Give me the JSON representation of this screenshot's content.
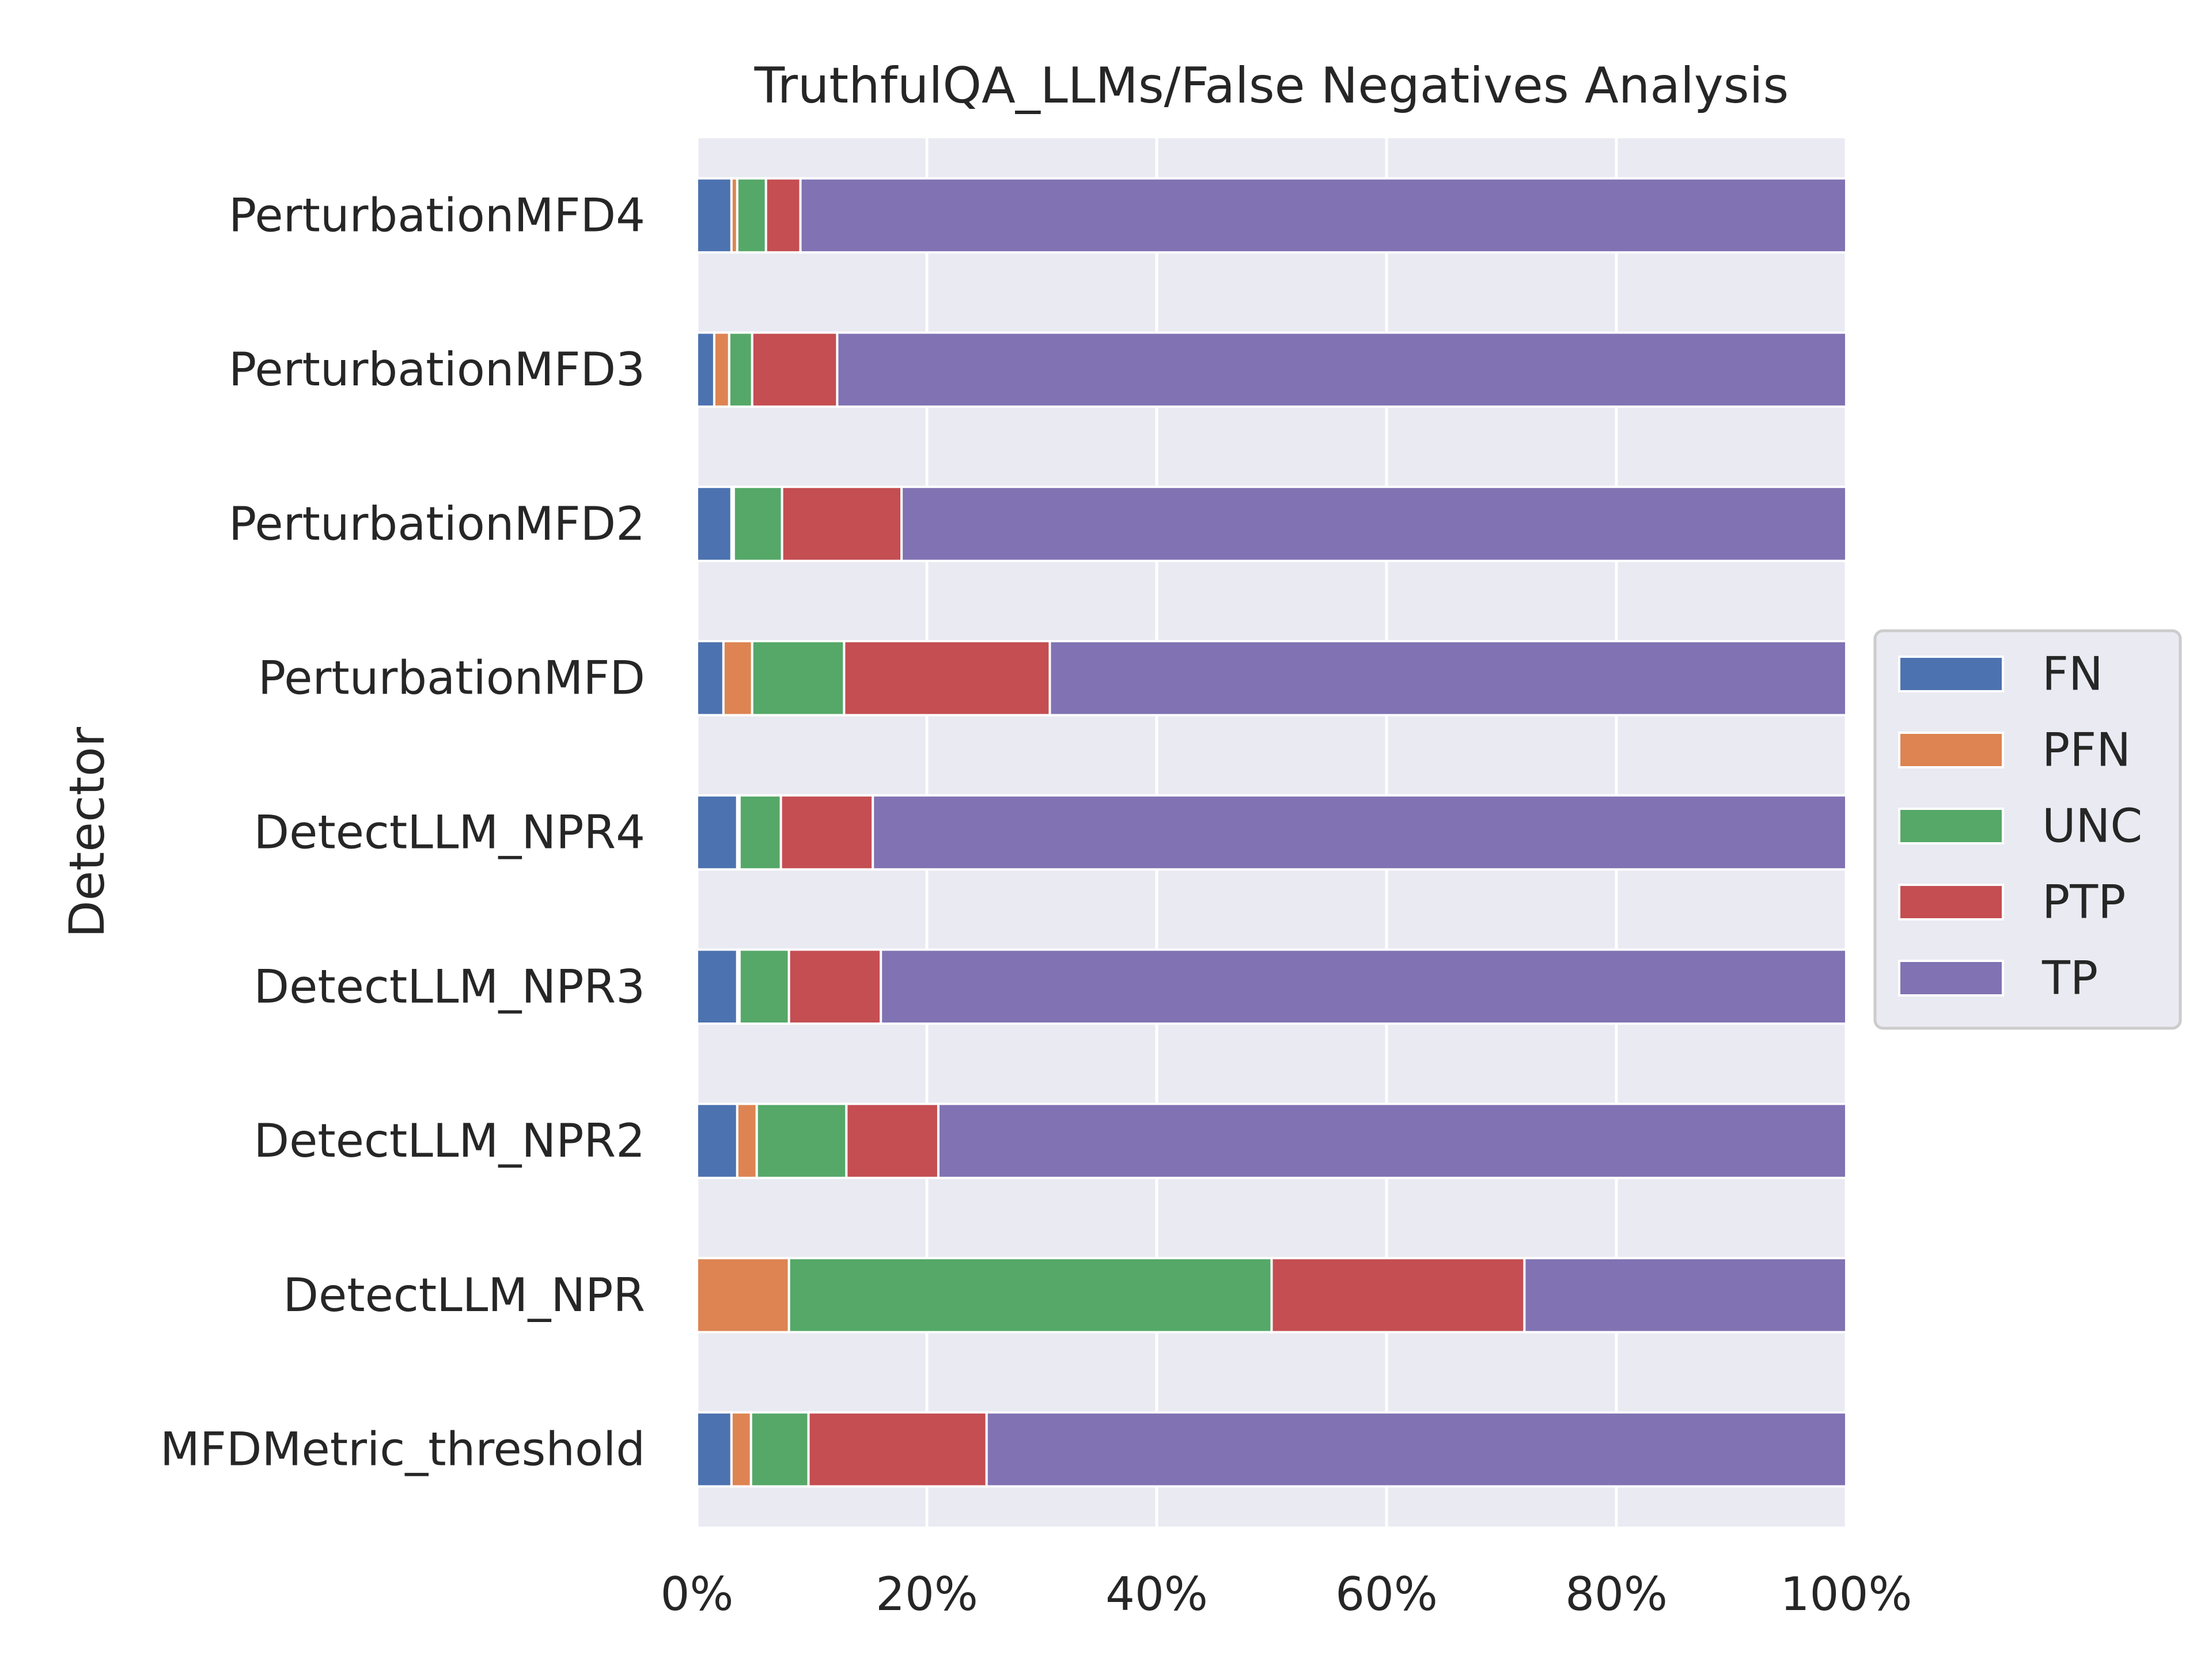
{
  "chart_data": {
    "type": "bar",
    "orientation": "horizontal",
    "stacked": true,
    "title": "TruthfulQA_LLMs/False Negatives Analysis",
    "xlabel": "",
    "ylabel": "Detector",
    "xlim": [
      0,
      100
    ],
    "x_ticks": [
      "0%",
      "20%",
      "40%",
      "60%",
      "80%",
      "100%"
    ],
    "grid": true,
    "legend_position": "center-right",
    "categories": [
      "PerturbationMFD4",
      "PerturbationMFD3",
      "PerturbationMFD2",
      "PerturbationMFD",
      "DetectLLM_NPR4",
      "DetectLLM_NPR3",
      "DetectLLM_NPR2",
      "DetectLLM_NPR",
      "MFDMetric_threshold"
    ],
    "series": [
      {
        "name": "FN",
        "color": "#4c72b0",
        "values": [
          3.0,
          1.5,
          3.0,
          2.3,
          3.5,
          3.5,
          3.5,
          0.0,
          3.0
        ]
      },
      {
        "name": "PFN",
        "color": "#dd8452",
        "values": [
          0.5,
          1.3,
          0.2,
          2.5,
          0.2,
          0.2,
          1.7,
          8.0,
          1.7
        ]
      },
      {
        "name": "UNC",
        "color": "#55a868",
        "values": [
          2.5,
          2.0,
          4.2,
          8.0,
          3.6,
          4.3,
          7.8,
          42.0,
          5.0
        ]
      },
      {
        "name": "PTP",
        "color": "#c44e52",
        "values": [
          3.0,
          7.4,
          10.4,
          17.9,
          8.0,
          8.0,
          8.0,
          22.0,
          15.5
        ]
      },
      {
        "name": "TP",
        "color": "#8172b3",
        "values": [
          91.0,
          87.8,
          82.2,
          69.3,
          84.7,
          84.0,
          79.0,
          28.0,
          74.8
        ]
      }
    ]
  }
}
